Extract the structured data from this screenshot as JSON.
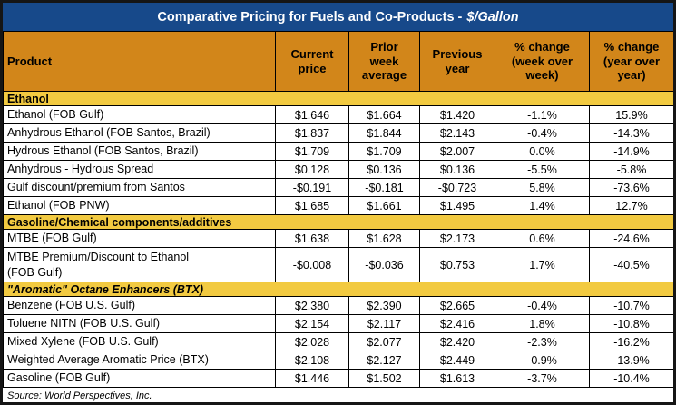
{
  "colors": {
    "title_bg": "#17498A",
    "title_text": "#FFFFFF",
    "column_header_bg": "#D2861A",
    "section_band_bg": "#F2CA41",
    "grid_line": "#000000",
    "row_bg": "#FFFFFF",
    "body_text": "#000000",
    "outer_border": "#151515"
  },
  "chart_data": {
    "type": "table",
    "title": "Comparative Pricing for Fuels and Co-Products - $/Gallon",
    "title_main": "Comparative Pricing for Fuels and Co-Products -",
    "title_unit": "$/Gallon",
    "columns": [
      "Product",
      "Current\nprice",
      "Prior\nweek\naverage",
      "Previous\nyear",
      "% change\n(week over\nweek)",
      "% change\n(year over\nyear)"
    ],
    "sections": [
      {
        "label": "Ethanol",
        "rows": [
          {
            "cells": [
              "Ethanol (FOB Gulf)",
              "$1.646",
              "$1.664",
              "$1.420",
              "-1.1%",
              "15.9%"
            ]
          },
          {
            "cells": [
              "Anhydrous Ethanol (FOB Santos, Brazil)",
              "$1.837",
              "$1.844",
              "$2.143",
              "-0.4%",
              "-14.3%"
            ]
          },
          {
            "cells": [
              "Hydrous Ethanol (FOB Santos, Brazil)",
              "$1.709",
              "$1.709",
              "$2.007",
              "0.0%",
              "-14.9%"
            ]
          },
          {
            "cells": [
              "Anhydrous - Hydrous Spread",
              "$0.128",
              "$0.136",
              "$0.136",
              "-5.5%",
              "-5.8%"
            ]
          },
          {
            "cells": [
              "Gulf discount/premium from Santos",
              "-$0.191",
              "-$0.181",
              "-$0.723",
              "5.8%",
              "-73.6%"
            ]
          },
          {
            "cells": [
              "Ethanol (FOB PNW)",
              "$1.685",
              "$1.661",
              "$1.495",
              "1.4%",
              "12.7%"
            ]
          }
        ]
      },
      {
        "label": "Gasoline/Chemical components/additives",
        "rows": [
          {
            "cells": [
              "MTBE (FOB Gulf)",
              "$1.638",
              "$1.628",
              "$2.173",
              "0.6%",
              "-24.6%"
            ]
          },
          {
            "cells": [
              "MTBE Premium/Discount to Ethanol\n(FOB Gulf)",
              "-$0.008",
              "-$0.036",
              "$0.753",
              "1.7%",
              "-40.5%"
            ]
          }
        ]
      },
      {
        "label": "\"Aromatic\" Octane Enhancers (BTX)",
        "rows": [
          {
            "cells": [
              "Benzene (FOB U.S. Gulf)",
              "$2.380",
              "$2.390",
              "$2.665",
              "-0.4%",
              "-10.7%"
            ]
          },
          {
            "cells": [
              "Toluene NITN (FOB U.S. Gulf)",
              "$2.154",
              "$2.117",
              "$2.416",
              "1.8%",
              "-10.8%"
            ]
          },
          {
            "cells": [
              "Mixed Xylene (FOB U.S. Gulf)",
              "$2.028",
              "$2.077",
              "$2.420",
              "-2.3%",
              "-16.2%"
            ]
          },
          {
            "cells": [
              "Weighted Average Aromatic Price (BTX)",
              "$2.108",
              "$2.127",
              "$2.449",
              "-0.9%",
              "-13.9%"
            ]
          },
          {
            "cells": [
              "Gasoline (FOB Gulf)",
              "$1.446",
              "$1.502",
              "$1.613",
              "-3.7%",
              "-10.4%"
            ]
          }
        ]
      }
    ],
    "source": "Source: World Perspectives, Inc."
  }
}
